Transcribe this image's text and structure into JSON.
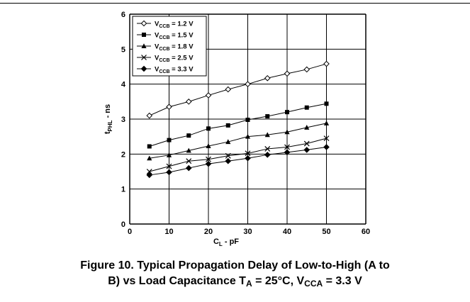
{
  "chart_data": {
    "type": "line",
    "xlabel_main": "C",
    "xlabel_sub": "L",
    "xlabel_tail": " - pF",
    "ylabel_main": "t",
    "ylabel_sub": "PHL",
    "ylabel_tail": " - ns",
    "xlim": [
      0,
      60
    ],
    "ylim": [
      0,
      6
    ],
    "xticks": [
      "0",
      "10",
      "20",
      "30",
      "40",
      "50",
      "60"
    ],
    "yticks": [
      "0",
      "1",
      "2",
      "3",
      "4",
      "5",
      "6"
    ],
    "grid": true,
    "legend_position": "top-left",
    "x": [
      5,
      10,
      15,
      20,
      25,
      30,
      35,
      40,
      45,
      50
    ],
    "series": [
      {
        "name_main": "V",
        "name_sub": "CCB",
        "name_tail": " = 1.2 V",
        "marker": "diamond-open",
        "values": [
          3.1,
          3.35,
          3.5,
          3.68,
          3.85,
          4.0,
          4.17,
          4.3,
          4.42,
          4.58
        ]
      },
      {
        "name_main": "V",
        "name_sub": "CCB",
        "name_tail": " = 1.5 V",
        "marker": "square",
        "values": [
          2.22,
          2.4,
          2.53,
          2.73,
          2.82,
          2.98,
          3.08,
          3.2,
          3.33,
          3.44
        ]
      },
      {
        "name_main": "V",
        "name_sub": "CCB",
        "name_tail": " = 1.8 V",
        "marker": "triangle",
        "values": [
          1.88,
          1.97,
          2.1,
          2.23,
          2.35,
          2.5,
          2.55,
          2.63,
          2.76,
          2.88
        ]
      },
      {
        "name_main": "V",
        "name_sub": "CCB",
        "name_tail": " = 2.5 V",
        "marker": "x",
        "values": [
          1.5,
          1.65,
          1.8,
          1.85,
          1.95,
          2.02,
          2.15,
          2.2,
          2.3,
          2.45
        ]
      },
      {
        "name_main": "V",
        "name_sub": "CCB",
        "name_tail": " = 3.3 V",
        "marker": "diamond",
        "values": [
          1.4,
          1.48,
          1.6,
          1.72,
          1.8,
          1.88,
          1.98,
          2.05,
          2.12,
          2.2
        ]
      }
    ]
  },
  "caption": {
    "line1": "Figure 10. Typical Propagation Delay of Low-to-High (A to",
    "line2_a": "B) vs Load Capacitance T",
    "line2_sub1": "A",
    "line2_b": " = 25°C, V",
    "line2_sub2": "CCA",
    "line2_c": " = 3.3 V"
  }
}
